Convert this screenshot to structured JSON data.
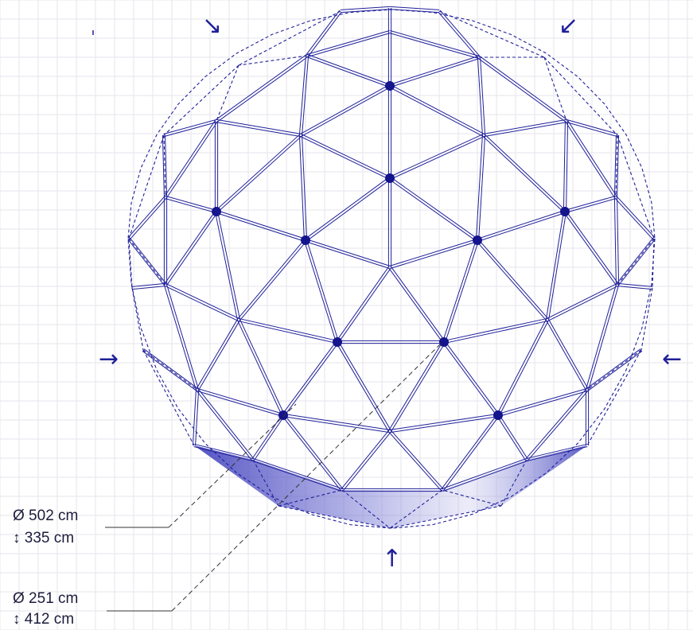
{
  "colors": {
    "stroke": "#20209a",
    "node": "#14148c",
    "grid": "#e6e6ec",
    "background": "#ffffff",
    "label": "#1c1c3c"
  },
  "dimensions": [
    {
      "diameter": "Ø 502 cm",
      "height": "↕ 335 cm"
    },
    {
      "diameter": "Ø 251 cm",
      "height": "↕ 412 cm"
    }
  ],
  "arrows": {
    "top_left": "↘",
    "top_right": "↙",
    "left": "→",
    "right": "←",
    "bottom": "↑"
  },
  "icons": [
    "geodesic-dome-icon",
    "node-dot-icon",
    "direction-arrow-icon"
  ]
}
